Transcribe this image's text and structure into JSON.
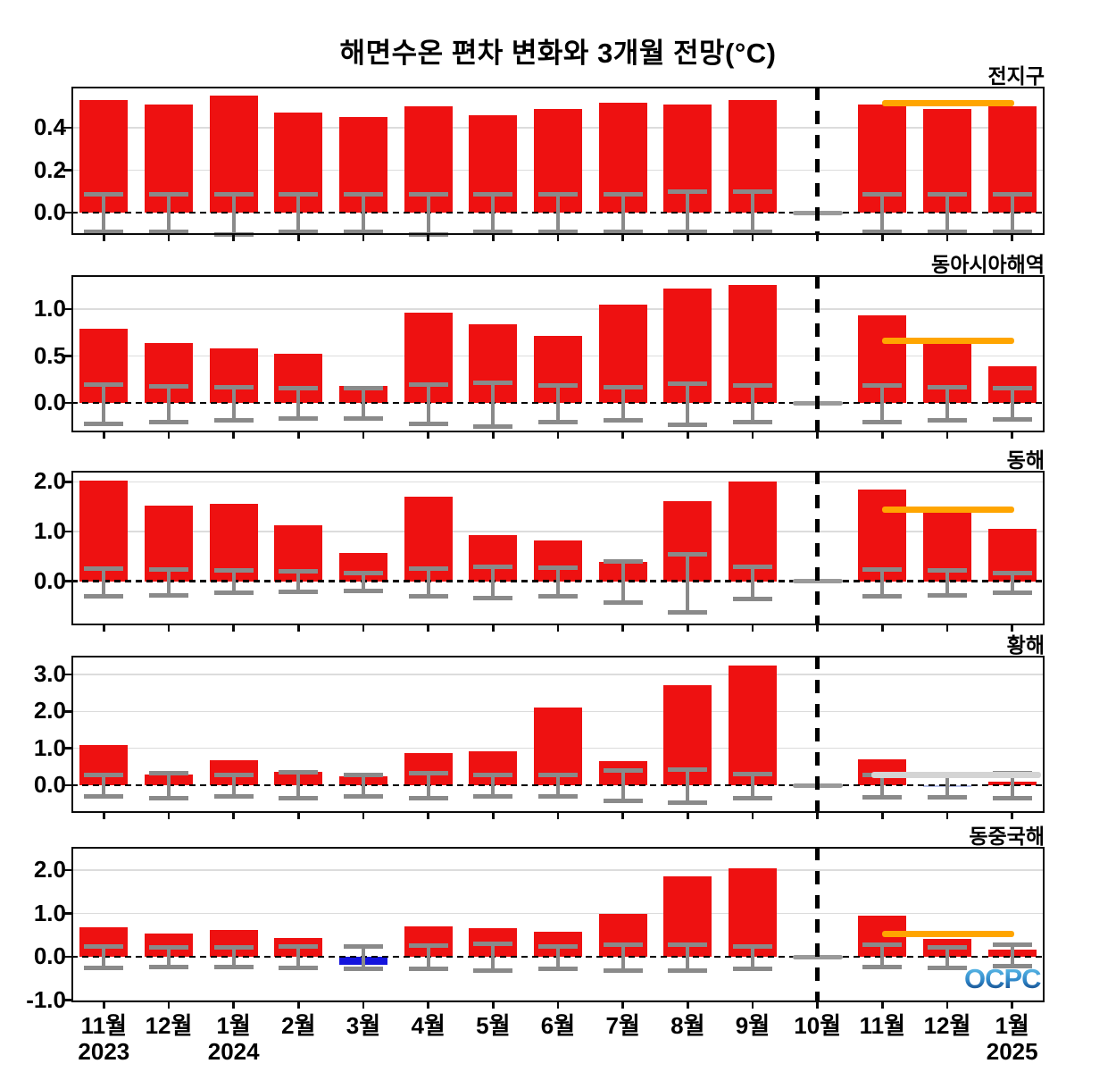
{
  "title": "해면수온 편차 변화와 3개월 전망(°C)",
  "logo": {
    "text": "OCPC"
  },
  "colors": {
    "bar": "#ee1111",
    "bar_negative": "#1414dd",
    "bar_faint_negative": "#b6bfe8",
    "error_bar": "#8a8a8a",
    "forecast_orange": "#ffa500",
    "forecast_gray": "#d4d4d4",
    "missing_marker": "#9a9a9a",
    "divider": "#000000",
    "grid": "#dcdcdc"
  },
  "x_axis": {
    "months": [
      "11월",
      "12월",
      "1월",
      "2월",
      "3월",
      "4월",
      "5월",
      "6월",
      "7월",
      "8월",
      "9월",
      "10월",
      "11월",
      "12월",
      "1월"
    ],
    "years": [
      {
        "label": "2023",
        "month_index": 0
      },
      {
        "label": "2024",
        "month_index": 2
      },
      {
        "label": "2025",
        "month_index": 14
      }
    ]
  },
  "forecast_divider_month_index": 11,
  "chart_data": [
    {
      "type": "bar",
      "id": "global",
      "title": "전지구",
      "yticks": [
        0.0,
        0.2,
        0.4
      ],
      "ytick_labels": [
        "0.0",
        "0.2",
        "0.4"
      ],
      "ylim": [
        -0.105,
        0.594
      ],
      "values": [
        0.53,
        0.51,
        0.55,
        0.47,
        0.45,
        0.5,
        0.46,
        0.49,
        0.52,
        0.51,
        0.53,
        null,
        0.51,
        0.49,
        0.5
      ],
      "error_top": [
        0.09,
        0.09,
        0.09,
        0.09,
        0.09,
        0.09,
        0.09,
        0.09,
        0.09,
        0.1,
        0.1,
        null,
        0.09,
        0.09,
        0.09
      ],
      "error_bot": [
        -0.09,
        -0.09,
        -0.1,
        -0.09,
        -0.09,
        -0.1,
        -0.09,
        -0.09,
        -0.09,
        -0.09,
        -0.09,
        null,
        -0.09,
        -0.09,
        -0.09
      ],
      "missing_index": 11,
      "forecast": {
        "value": 0.515,
        "color": "#ffa500",
        "wide": false
      }
    },
    {
      "type": "bar",
      "id": "east-asia-seas",
      "title": "동아시아해역",
      "yticks": [
        0.0,
        0.5,
        1.0
      ],
      "ytick_labels": [
        "0.0",
        "0.5",
        "1.0"
      ],
      "ylim": [
        -0.314,
        1.362
      ],
      "values": [
        0.79,
        0.64,
        0.58,
        0.52,
        0.18,
        0.96,
        0.84,
        0.71,
        1.05,
        1.22,
        1.26,
        null,
        0.93,
        0.63,
        0.39
      ],
      "error_top": [
        0.2,
        0.18,
        0.17,
        0.16,
        0.16,
        0.2,
        0.22,
        0.19,
        0.17,
        0.21,
        0.19,
        null,
        0.19,
        0.17,
        0.16
      ],
      "error_bot": [
        -0.22,
        -0.2,
        -0.18,
        -0.16,
        -0.16,
        -0.22,
        -0.25,
        -0.2,
        -0.18,
        -0.23,
        -0.2,
        null,
        -0.2,
        -0.18,
        -0.17
      ],
      "missing_index": 11,
      "forecast": {
        "value": 0.66,
        "color": "#ffa500",
        "wide": false
      }
    },
    {
      "type": "bar",
      "id": "east-sea",
      "title": "동해",
      "yticks": [
        0.0,
        1.0,
        2.0
      ],
      "ytick_labels": [
        "0.0",
        "1.0",
        "2.0"
      ],
      "ylim": [
        -0.89,
        2.225
      ],
      "values": [
        2.03,
        1.53,
        1.55,
        1.12,
        0.56,
        1.7,
        0.92,
        0.82,
        0.38,
        1.62,
        2.0,
        null,
        1.85,
        1.4,
        1.05
      ],
      "error_top": [
        0.27,
        0.25,
        0.22,
        0.2,
        0.17,
        0.27,
        0.3,
        0.28,
        0.4,
        0.55,
        0.3,
        null,
        0.25,
        0.22,
        0.18
      ],
      "error_bot": [
        -0.3,
        -0.27,
        -0.23,
        -0.2,
        -0.18,
        -0.3,
        -0.33,
        -0.3,
        -0.42,
        -0.62,
        -0.35,
        null,
        -0.3,
        -0.28,
        -0.22
      ],
      "missing_index": 11,
      "forecast": {
        "value": 1.45,
        "color": "#ffa500",
        "wide": false
      }
    },
    {
      "type": "bar",
      "id": "yellow-sea",
      "title": "황해",
      "yticks": [
        0.0,
        1.0,
        2.0,
        3.0
      ],
      "ytick_labels": [
        "0.0",
        "1.0",
        "2.0",
        "3.0"
      ],
      "ylim": [
        -0.75,
        3.51
      ],
      "values": [
        1.08,
        0.28,
        0.67,
        0.36,
        0.24,
        0.88,
        0.93,
        2.1,
        0.65,
        2.7,
        3.25,
        null,
        0.7,
        -0.05,
        0.1
      ],
      "error_top": [
        0.28,
        0.33,
        0.28,
        0.36,
        0.28,
        0.34,
        0.28,
        0.28,
        0.4,
        0.44,
        0.32,
        null,
        0.3,
        0.3,
        0.33
      ],
      "error_bot": [
        -0.3,
        -0.33,
        -0.28,
        -0.33,
        -0.28,
        -0.35,
        -0.3,
        -0.3,
        -0.42,
        -0.46,
        -0.34,
        null,
        -0.32,
        -0.32,
        -0.35
      ],
      "missing_index": 11,
      "bar_color_overrides": {
        "13": "#b6bfe8"
      },
      "forecast": {
        "value": 0.28,
        "color": "#d4d4d4",
        "wide": true
      }
    },
    {
      "type": "bar",
      "id": "east-china-sea",
      "title": "동중국해",
      "yticks": [
        -1.0,
        0.0,
        1.0,
        2.0
      ],
      "ytick_labels": [
        "-1.0",
        "0.0",
        "1.0",
        "2.0"
      ],
      "ylim": [
        -1.05,
        2.535
      ],
      "values": [
        0.68,
        0.54,
        0.61,
        0.43,
        -0.18,
        0.7,
        0.66,
        0.58,
        1.0,
        1.85,
        2.05,
        null,
        0.95,
        0.42,
        0.17
      ],
      "error_top": [
        0.25,
        0.22,
        0.23,
        0.24,
        0.25,
        0.27,
        0.3,
        0.25,
        0.28,
        0.28,
        0.25,
        null,
        0.28,
        0.22,
        0.28
      ],
      "error_bot": [
        -0.25,
        -0.22,
        -0.23,
        -0.24,
        -0.26,
        -0.27,
        -0.3,
        -0.26,
        -0.3,
        -0.3,
        -0.27,
        null,
        -0.22,
        -0.24,
        -0.2
      ],
      "missing_index": 11,
      "bar_color_overrides": {
        "4": "#1414dd"
      },
      "forecast": {
        "value": 0.52,
        "color": "#ffa500",
        "wide": false
      }
    }
  ]
}
